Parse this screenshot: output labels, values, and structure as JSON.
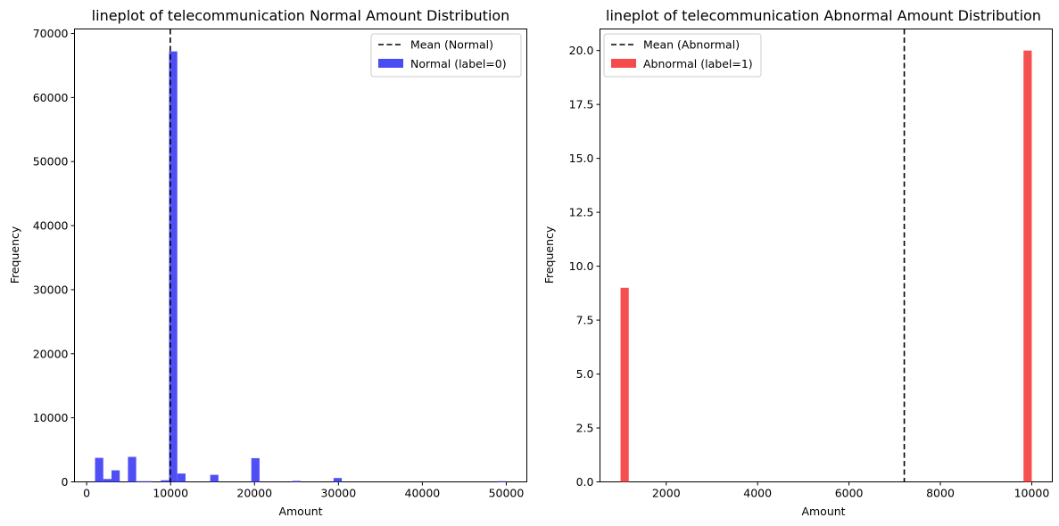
{
  "chart_data": [
    {
      "type": "histogram",
      "title": "lineplot of telecommunication Normal Amount Distribution",
      "xlabel": "Amount",
      "ylabel": "Frequency",
      "xlim": [
        -1450,
        52450
      ],
      "ylim": [
        0,
        70700
      ],
      "xticks": [
        0,
        10000,
        20000,
        30000,
        40000,
        50000
      ],
      "yticks": [
        0,
        10000,
        20000,
        30000,
        40000,
        50000,
        60000,
        70000
      ],
      "bin_width": 980,
      "bars": [
        {
          "x": 1000,
          "value": 3750
        },
        {
          "x": 1980,
          "value": 450
        },
        {
          "x": 2960,
          "value": 1800
        },
        {
          "x": 4920,
          "value": 3900
        },
        {
          "x": 5900,
          "value": 100
        },
        {
          "x": 6880,
          "value": 100
        },
        {
          "x": 8840,
          "value": 250
        },
        {
          "x": 9820,
          "value": 67200
        },
        {
          "x": 10800,
          "value": 1300
        },
        {
          "x": 14720,
          "value": 1100
        },
        {
          "x": 19620,
          "value": 3700
        },
        {
          "x": 24520,
          "value": 150
        },
        {
          "x": 29420,
          "value": 600
        },
        {
          "x": 49020,
          "value": 100
        }
      ],
      "series": [
        {
          "name": "Normal (label=0)",
          "color": "#4b4bf5"
        }
      ],
      "mean_line": {
        "name": "Mean (Normal)",
        "x": 9960
      },
      "legend": "top-right",
      "grid": false
    },
    {
      "type": "histogram",
      "title": "lineplot of telecommunication Abnormal Amount Distribution",
      "xlabel": "Amount",
      "ylabel": "Frequency",
      "xlim": [
        550,
        10450
      ],
      "ylim": [
        0,
        21
      ],
      "xticks": [
        2000,
        4000,
        6000,
        8000,
        10000
      ],
      "yticks": [
        0.0,
        2.5,
        5.0,
        7.5,
        10.0,
        12.5,
        15.0,
        17.5,
        20.0
      ],
      "bin_width": 180,
      "bars": [
        {
          "x": 1000,
          "value": 9
        },
        {
          "x": 9820,
          "value": 20
        }
      ],
      "series": [
        {
          "name": "Abnormal (label=1)",
          "color": "#f54b4b"
        }
      ],
      "mean_line": {
        "name": "Mean (Abnormal)",
        "x": 7210
      },
      "legend": "top-left",
      "grid": false
    }
  ]
}
